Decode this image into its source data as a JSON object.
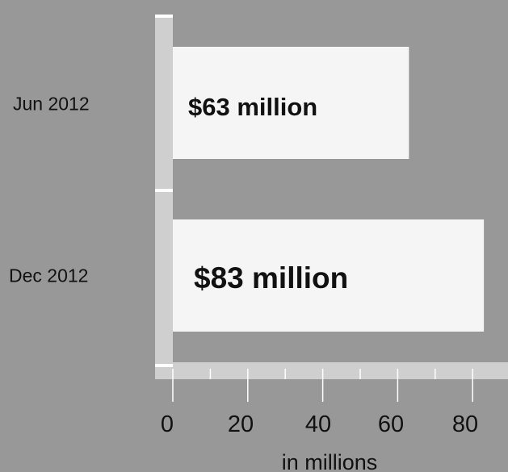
{
  "chart_data": {
    "type": "bar",
    "orientation": "horizontal",
    "categories": [
      "Jun 2012",
      "Dec 2012"
    ],
    "values": [
      63,
      83
    ],
    "data_labels": [
      "$63 million",
      "$83 million"
    ],
    "xlabel": "in millions",
    "ylabel": "",
    "title": "",
    "xlim": [
      0,
      90
    ],
    "x_ticks": [
      "0",
      "20",
      "40",
      "60",
      "80"
    ],
    "grid": false,
    "legend": "none",
    "colors": {
      "background": "#989898",
      "bar": "#f5f5f5",
      "axis": "#cfcfcf",
      "tick": "#ffffff",
      "text": "#111111"
    }
  }
}
